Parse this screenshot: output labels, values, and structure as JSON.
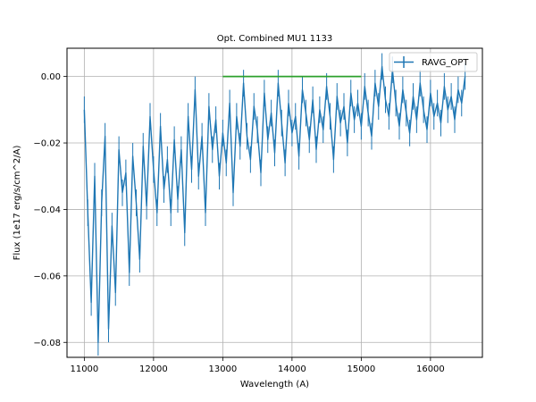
{
  "chart_data": {
    "type": "line",
    "title": "Opt. Combined MU1 1133",
    "xlabel": "Wavelength (A)",
    "ylabel": "Flux (1e17 erg/s/cm^2/A)",
    "xlim": [
      10750,
      16750
    ],
    "ylim": [
      -0.0845,
      0.0085
    ],
    "xticks": [
      11000,
      12000,
      13000,
      14000,
      15000,
      16000
    ],
    "yticks": [
      -0.08,
      -0.06,
      -0.04,
      -0.02,
      0.0
    ],
    "xtick_labels": [
      "11000",
      "12000",
      "13000",
      "14000",
      "15000",
      "16000"
    ],
    "ytick_labels": [
      "−0.08",
      "−0.06",
      "−0.04",
      "−0.02",
      "0.00"
    ],
    "grid": true,
    "legend_position": "top-right",
    "series": [
      {
        "name": "RAVG_OPT",
        "color": "#1f77b4",
        "x": [
          11000,
          11050,
          11100,
          11150,
          11200,
          11250,
          11300,
          11350,
          11400,
          11450,
          11500,
          11550,
          11600,
          11650,
          11700,
          11750,
          11800,
          11850,
          11900,
          11950,
          12000,
          12050,
          12100,
          12150,
          12200,
          12250,
          12300,
          12350,
          12400,
          12450,
          12500,
          12550,
          12600,
          12650,
          12700,
          12750,
          12800,
          12850,
          12900,
          12950,
          13000,
          13050,
          13100,
          13150,
          13200,
          13250,
          13300,
          13350,
          13400,
          13450,
          13500,
          13550,
          13600,
          13650,
          13700,
          13750,
          13800,
          13850,
          13900,
          13950,
          14000,
          14050,
          14100,
          14150,
          14200,
          14250,
          14300,
          14350,
          14400,
          14450,
          14500,
          14550,
          14600,
          14650,
          14700,
          14750,
          14800,
          14850,
          14900,
          14950,
          15000,
          15050,
          15100,
          15150,
          15200,
          15250,
          15300,
          15350,
          15400,
          15450,
          15500,
          15550,
          15600,
          15650,
          15700,
          15750,
          15800,
          15850,
          15900,
          15950,
          16000,
          16050,
          16100,
          16150,
          16200,
          16250,
          16300,
          16350,
          16400,
          16450,
          16500
        ],
        "y": [
          -0.01,
          -0.041,
          -0.068,
          -0.03,
          -0.08,
          -0.038,
          -0.018,
          -0.076,
          -0.045,
          -0.065,
          -0.022,
          -0.035,
          -0.029,
          -0.059,
          -0.024,
          -0.038,
          -0.055,
          -0.021,
          -0.039,
          -0.012,
          -0.028,
          -0.041,
          -0.015,
          -0.034,
          -0.025,
          -0.041,
          -0.019,
          -0.037,
          -0.022,
          -0.047,
          -0.012,
          -0.028,
          -0.004,
          -0.03,
          -0.018,
          -0.041,
          -0.009,
          -0.022,
          -0.013,
          -0.03,
          -0.017,
          -0.026,
          -0.008,
          -0.035,
          -0.012,
          -0.021,
          -0.002,
          -0.018,
          -0.025,
          -0.009,
          -0.016,
          -0.029,
          -0.005,
          -0.019,
          -0.011,
          -0.023,
          -0.002,
          -0.014,
          -0.026,
          -0.008,
          -0.017,
          -0.012,
          -0.024,
          -0.004,
          -0.011,
          -0.019,
          -0.007,
          -0.022,
          -0.01,
          -0.016,
          -0.003,
          -0.012,
          -0.025,
          -0.006,
          -0.014,
          -0.009,
          -0.02,
          -0.005,
          -0.013,
          -0.008,
          -0.015,
          -0.003,
          -0.011,
          -0.018,
          -0.002,
          -0.009,
          0.003,
          -0.007,
          -0.012,
          0.002,
          -0.008,
          -0.015,
          -0.004,
          -0.011,
          -0.017,
          -0.006,
          -0.013,
          -0.002,
          -0.01,
          -0.016,
          -0.005,
          -0.012,
          -0.008,
          -0.014,
          -0.003,
          -0.01,
          -0.006,
          -0.013,
          -0.004,
          -0.008,
          0.0
        ],
        "yerr": 0.004
      },
      {
        "name": "",
        "color": "#2ca02c",
        "x": [
          13000,
          15000
        ],
        "y": [
          0.0,
          0.0
        ]
      }
    ]
  }
}
